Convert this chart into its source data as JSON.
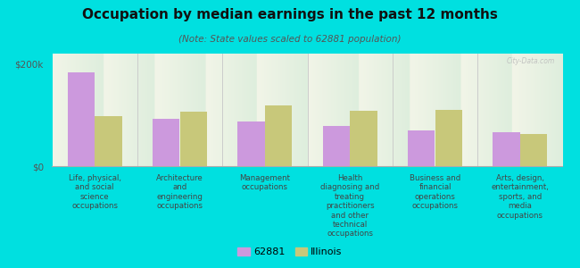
{
  "title": "Occupation by median earnings in the past 12 months",
  "subtitle": "(Note: State values scaled to 62881 population)",
  "background_color": "#00e0e0",
  "plot_bg_color_top": "#f2f5e8",
  "plot_bg_color_bottom": "#deeedd",
  "categories": [
    "Life, physical,\nand social\nscience\noccupations",
    "Architecture\nand\nengineering\noccupations",
    "Management\noccupations",
    "Health\ndiagnosing and\ntreating\npractitioners\nand other\ntechnical\noccupations",
    "Business and\nfinancial\noperations\noccupations",
    "Arts, design,\nentertainment,\nsports, and\nmedia\noccupations"
  ],
  "values_62881": [
    183000,
    93000,
    87000,
    78000,
    70000,
    67000
  ],
  "values_illinois": [
    98000,
    107000,
    118000,
    108000,
    110000,
    63000
  ],
  "color_62881": "#cc99dd",
  "color_illinois": "#c8c87a",
  "ylim": [
    0,
    220000
  ],
  "yticks": [
    0,
    200000
  ],
  "ytick_labels": [
    "$0",
    "$200k"
  ],
  "legend_label_62881": "62881",
  "legend_label_illinois": "Illinois",
  "watermark": "City-Data.com",
  "bar_width": 0.32
}
